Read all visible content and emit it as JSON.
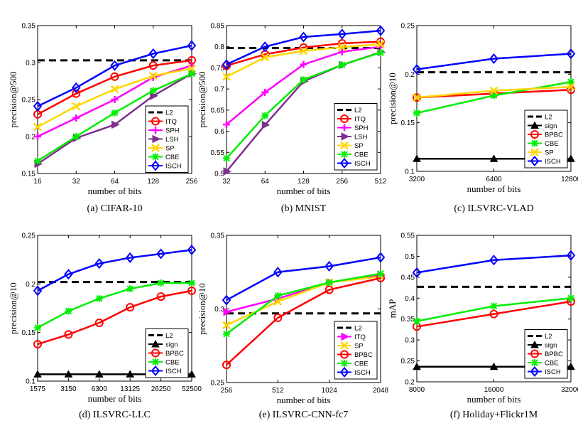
{
  "chart_data": [
    {
      "type": "line",
      "caption": "(a) CIFAR-10",
      "xlabel": "number of bits",
      "ylabel": "precision@500",
      "categories": [
        "16",
        "32",
        "64",
        "128",
        "256"
      ],
      "ylim": [
        0.15,
        0.35
      ],
      "yticks": [
        "0.15",
        "0.2",
        "0.25",
        "0.3",
        "0.35"
      ],
      "legend_position": "middle-right",
      "series": [
        {
          "name": "L2",
          "color": "#000000",
          "style": "dashed",
          "marker": "none",
          "values": [
            0.303,
            0.303,
            0.303,
            0.303,
            0.303
          ]
        },
        {
          "name": "ITQ",
          "color": "#ff0000",
          "style": "solid",
          "marker": "circle",
          "values": [
            0.23,
            0.258,
            0.281,
            0.296,
            0.303
          ]
        },
        {
          "name": "SPH",
          "color": "#ff00ff",
          "style": "solid",
          "marker": "plus",
          "values": [
            0.2,
            0.225,
            0.25,
            0.28,
            0.296
          ]
        },
        {
          "name": "LSH",
          "color": "#7f2f8f",
          "style": "solid",
          "marker": "triangle-right",
          "values": [
            0.163,
            0.198,
            0.216,
            0.255,
            0.285
          ]
        },
        {
          "name": "SP",
          "color": "#ffd700",
          "style": "solid",
          "marker": "x",
          "values": [
            0.213,
            0.241,
            0.264,
            0.282,
            0.292
          ]
        },
        {
          "name": "CBE",
          "color": "#00ee00",
          "style": "solid",
          "marker": "asterisk",
          "values": [
            0.167,
            0.2,
            0.232,
            0.262,
            0.285
          ]
        },
        {
          "name": "ISCH",
          "color": "#0000ff",
          "style": "solid",
          "marker": "diamond",
          "values": [
            0.241,
            0.266,
            0.296,
            0.312,
            0.323
          ]
        }
      ]
    },
    {
      "type": "line",
      "caption": "(b) MNIST",
      "xlabel": "number of bits",
      "ylabel": "precision@500",
      "categories": [
        "32",
        "64",
        "128",
        "256",
        "512"
      ],
      "ylim": [
        0.5,
        0.85
      ],
      "yticks": [
        "0.5",
        "0.55",
        "0.6",
        "0.65",
        "0.7",
        "0.75",
        "0.8",
        "0.85"
      ],
      "legend_position": "bottom-right",
      "series": [
        {
          "name": "L2",
          "color": "#000000",
          "style": "dashed",
          "marker": "none",
          "values": [
            0.797,
            0.797,
            0.797,
            0.797,
            0.797
          ]
        },
        {
          "name": "ITQ",
          "color": "#ff0000",
          "style": "solid",
          "marker": "circle",
          "values": [
            0.755,
            0.782,
            0.798,
            0.808,
            0.812
          ]
        },
        {
          "name": "SPH",
          "color": "#ff00ff",
          "style": "solid",
          "marker": "plus",
          "values": [
            0.616,
            0.692,
            0.758,
            0.788,
            0.8
          ]
        },
        {
          "name": "LSH",
          "color": "#7f2f8f",
          "style": "solid",
          "marker": "triangle-right",
          "values": [
            0.505,
            0.615,
            0.718,
            0.757,
            0.787
          ]
        },
        {
          "name": "SP",
          "color": "#ffd700",
          "style": "solid",
          "marker": "x",
          "values": [
            0.729,
            0.775,
            0.79,
            0.799,
            0.806
          ]
        },
        {
          "name": "CBE",
          "color": "#00ee00",
          "style": "solid",
          "marker": "asterisk",
          "values": [
            0.536,
            0.637,
            0.722,
            0.757,
            0.786
          ]
        },
        {
          "name": "ISCH",
          "color": "#0000ff",
          "style": "solid",
          "marker": "diamond",
          "values": [
            0.758,
            0.8,
            0.823,
            0.83,
            0.838
          ]
        }
      ]
    },
    {
      "type": "line",
      "caption": "(c) ILSVRC-VLAD",
      "xlabel": "number of bits",
      "ylabel": "precision@10",
      "categories": [
        "3200",
        "6400",
        "12800"
      ],
      "ylim": [
        0.1,
        0.25
      ],
      "yticks": [
        "0.1",
        "0.15",
        "0.2",
        "0.25"
      ],
      "legend_position": "bottom-right",
      "series": [
        {
          "name": "L2",
          "color": "#000000",
          "style": "dashed",
          "marker": "none",
          "values": [
            0.202,
            0.202,
            0.202
          ]
        },
        {
          "name": "sign",
          "color": "#000000",
          "style": "solid",
          "marker": "triangle-up",
          "values": [
            0.113,
            0.113,
            0.113
          ]
        },
        {
          "name": "BPBC",
          "color": "#ff0000",
          "style": "solid",
          "marker": "circle",
          "values": [
            0.176,
            0.18,
            0.184
          ]
        },
        {
          "name": "CBE",
          "color": "#00ee00",
          "style": "solid",
          "marker": "asterisk",
          "values": [
            0.16,
            0.178,
            0.192
          ]
        },
        {
          "name": "SP",
          "color": "#ffd700",
          "style": "solid",
          "marker": "x",
          "values": [
            0.176,
            0.183,
            0.187
          ]
        },
        {
          "name": "ISCH",
          "color": "#0000ff",
          "style": "solid",
          "marker": "diamond",
          "values": [
            0.205,
            0.216,
            0.221
          ]
        }
      ]
    },
    {
      "type": "line",
      "caption": "(d) ILSVRC-LLC",
      "xlabel": "number of bits",
      "ylabel": "precision@10",
      "categories": [
        "1575",
        "3150",
        "6300",
        "13125",
        "26250",
        "52500"
      ],
      "ylim": [
        0.1,
        0.25
      ],
      "yticks": [
        "0.1",
        "0.15",
        "0.2",
        "0.25"
      ],
      "legend_position": "bottom-right",
      "series": [
        {
          "name": "L2",
          "color": "#000000",
          "style": "dashed",
          "marker": "none",
          "values": [
            0.202,
            0.202,
            0.202,
            0.202,
            0.202,
            0.202
          ]
        },
        {
          "name": "sign",
          "color": "#000000",
          "style": "solid",
          "marker": "triangle-up",
          "values": [
            0.107,
            0.107,
            0.107,
            0.107,
            0.107,
            0.107
          ]
        },
        {
          "name": "BPBC",
          "color": "#ff0000",
          "style": "solid",
          "marker": "circle",
          "values": [
            0.138,
            0.148,
            0.16,
            0.176,
            0.187,
            0.193
          ]
        },
        {
          "name": "CBE",
          "color": "#00ee00",
          "style": "solid",
          "marker": "asterisk",
          "values": [
            0.155,
            0.172,
            0.185,
            0.195,
            0.201,
            0.201
          ]
        },
        {
          "name": "ISCH",
          "color": "#0000ff",
          "style": "solid",
          "marker": "diamond",
          "values": [
            0.193,
            0.21,
            0.221,
            0.227,
            0.231,
            0.235
          ]
        }
      ]
    },
    {
      "type": "line",
      "caption": "(e) ILSVRC-CNN-fc7",
      "xlabel": "number of bits",
      "ylabel": "precision@10",
      "categories": [
        "256",
        "512",
        "1024",
        "2048"
      ],
      "ylim": [
        0.25,
        0.35
      ],
      "yticks": [
        "0.25",
        "0.3",
        "0.35"
      ],
      "legend_position": "bottom-right",
      "series": [
        {
          "name": "L2",
          "color": "#000000",
          "style": "dashed",
          "marker": "none",
          "values": [
            0.297,
            0.297,
            0.297,
            0.297
          ]
        },
        {
          "name": "ITQ",
          "color": "#ff00ff",
          "style": "solid",
          "marker": "triangle-right",
          "values": [
            0.298,
            0.307,
            0.318,
            0.323
          ]
        },
        {
          "name": "SP",
          "color": "#ffd700",
          "style": "solid",
          "marker": "x",
          "values": [
            0.289,
            0.305,
            0.318,
            0.322
          ]
        },
        {
          "name": "BPBC",
          "color": "#ff0000",
          "style": "solid",
          "marker": "circle",
          "values": [
            0.262,
            0.294,
            0.313,
            0.321
          ]
        },
        {
          "name": "CBE",
          "color": "#00ee00",
          "style": "solid",
          "marker": "asterisk",
          "values": [
            0.283,
            0.309,
            0.318,
            0.324
          ]
        },
        {
          "name": "ISCH",
          "color": "#0000ff",
          "style": "solid",
          "marker": "diamond",
          "values": [
            0.306,
            0.325,
            0.329,
            0.335
          ]
        }
      ]
    },
    {
      "type": "line",
      "caption": "(f) Holiday+Flickr1M",
      "xlabel": "number of bits",
      "ylabel": "mAP",
      "categories": [
        "8000",
        "16000",
        "32000"
      ],
      "ylim": [
        0.2,
        0.55
      ],
      "yticks": [
        "0.2",
        "0.25",
        "0.3",
        "0.35",
        "0.4",
        "0.45",
        "0.5",
        "0.55"
      ],
      "legend_position": "bottom-right",
      "series": [
        {
          "name": "L2",
          "color": "#000000",
          "style": "dashed",
          "marker": "none",
          "values": [
            0.427,
            0.427,
            0.427
          ]
        },
        {
          "name": "sign",
          "color": "#000000",
          "style": "solid",
          "marker": "triangle-up",
          "values": [
            0.236,
            0.236,
            0.236
          ]
        },
        {
          "name": "BPBC",
          "color": "#ff0000",
          "style": "solid",
          "marker": "circle",
          "values": [
            0.332,
            0.362,
            0.392
          ]
        },
        {
          "name": "CBE",
          "color": "#00ee00",
          "style": "solid",
          "marker": "asterisk",
          "values": [
            0.345,
            0.381,
            0.4
          ]
        },
        {
          "name": "ISCH",
          "color": "#0000ff",
          "style": "solid",
          "marker": "diamond",
          "values": [
            0.461,
            0.491,
            0.502
          ]
        }
      ]
    }
  ]
}
